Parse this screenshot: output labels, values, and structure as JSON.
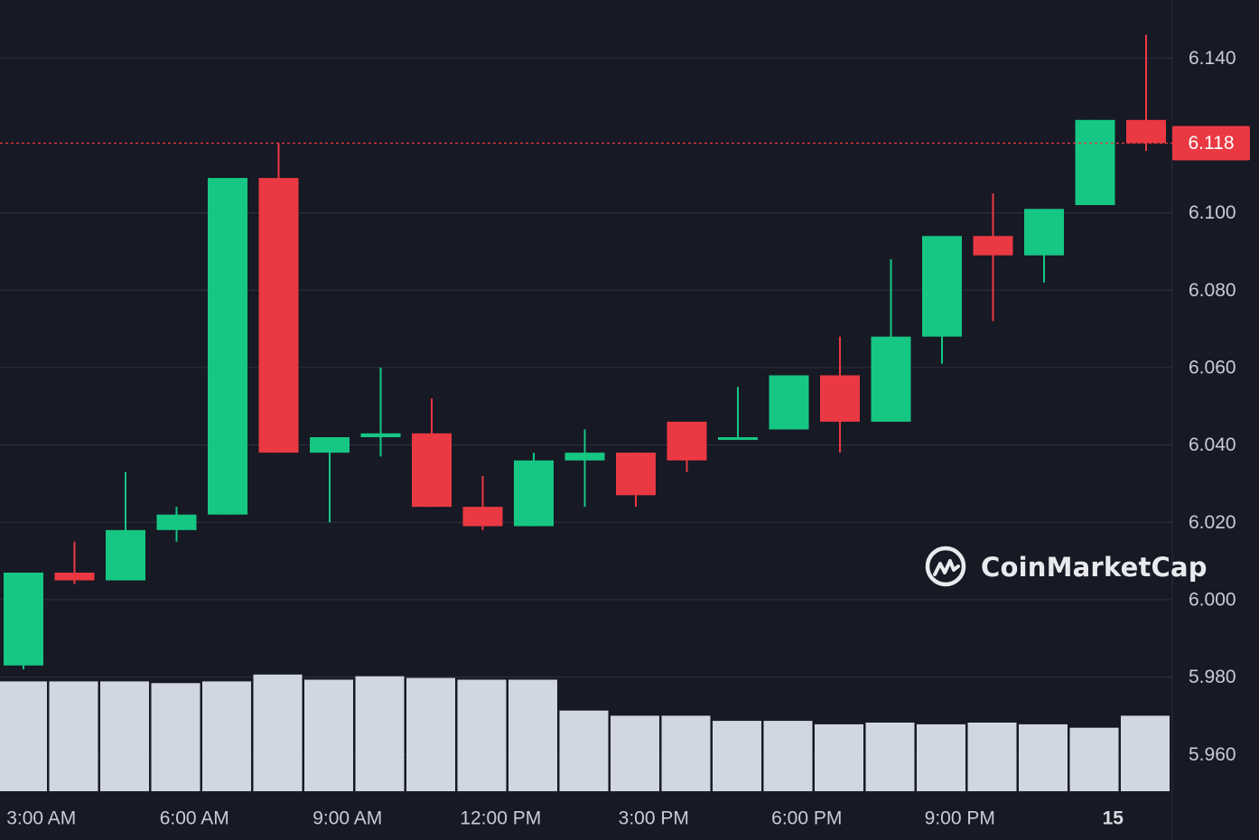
{
  "chart_data": {
    "type": "candlestick",
    "y_axis": {
      "position": "right",
      "ticks": [
        "5.960",
        "5.980",
        "6.000",
        "6.020",
        "6.040",
        "6.060",
        "6.080",
        "6.100",
        "6.140"
      ],
      "tick_values": [
        5.96,
        5.98,
        6.0,
        6.02,
        6.04,
        6.06,
        6.08,
        6.1,
        6.14
      ],
      "range": [
        5.9505,
        6.155
      ]
    },
    "x_axis": {
      "labels": [
        {
          "text": "3:00 AM",
          "bold": false
        },
        {
          "text": "6:00 AM",
          "bold": false
        },
        {
          "text": "9:00 AM",
          "bold": false
        },
        {
          "text": "12:00 PM",
          "bold": false
        },
        {
          "text": "3:00 PM",
          "bold": false
        },
        {
          "text": "6:00 PM",
          "bold": false
        },
        {
          "text": "9:00 PM",
          "bold": false
        },
        {
          "text": "15",
          "bold": true
        }
      ],
      "label_candle_index": [
        0.35,
        3.35,
        6.35,
        9.35,
        12.35,
        15.35,
        18.35,
        21.35
      ]
    },
    "grid": true,
    "current_price": {
      "value": 6.118,
      "label": "6.118"
    },
    "candles": [
      {
        "open": 5.983,
        "high": 6.007,
        "low": 5.982,
        "close": 6.007
      },
      {
        "open": 6.007,
        "high": 6.015,
        "low": 6.004,
        "close": 6.005
      },
      {
        "open": 6.005,
        "high": 6.033,
        "low": 6.005,
        "close": 6.018
      },
      {
        "open": 6.018,
        "high": 6.024,
        "low": 6.015,
        "close": 6.022
      },
      {
        "open": 6.022,
        "high": 6.109,
        "low": 6.022,
        "close": 6.109
      },
      {
        "open": 6.109,
        "high": 6.118,
        "low": 6.038,
        "close": 6.038
      },
      {
        "open": 6.038,
        "high": 6.042,
        "low": 6.02,
        "close": 6.042
      },
      {
        "open": 6.042,
        "high": 6.06,
        "low": 6.037,
        "close": 6.043
      },
      {
        "open": 6.043,
        "high": 6.052,
        "low": 6.024,
        "close": 6.024
      },
      {
        "open": 6.024,
        "high": 6.032,
        "low": 6.018,
        "close": 6.019
      },
      {
        "open": 6.019,
        "high": 6.038,
        "low": 6.019,
        "close": 6.036
      },
      {
        "open": 6.036,
        "high": 6.044,
        "low": 6.024,
        "close": 6.038
      },
      {
        "open": 6.038,
        "high": 6.038,
        "low": 6.024,
        "close": 6.027
      },
      {
        "open": 6.046,
        "high": 6.046,
        "low": 6.033,
        "close": 6.036
      },
      {
        "open": 6.042,
        "high": 6.055,
        "low": 6.042,
        "close": 6.042
      },
      {
        "open": 6.044,
        "high": 6.058,
        "low": 6.044,
        "close": 6.058
      },
      {
        "open": 6.058,
        "high": 6.068,
        "low": 6.038,
        "close": 6.046
      },
      {
        "open": 6.046,
        "high": 6.088,
        "low": 6.046,
        "close": 6.068
      },
      {
        "open": 6.068,
        "high": 6.094,
        "low": 6.061,
        "close": 6.094
      },
      {
        "open": 6.094,
        "high": 6.105,
        "low": 6.072,
        "close": 6.089
      },
      {
        "open": 6.089,
        "high": 6.101,
        "low": 6.082,
        "close": 6.101
      },
      {
        "open": 6.102,
        "high": 6.124,
        "low": 6.102,
        "close": 6.124
      },
      {
        "open": 6.124,
        "high": 6.146,
        "low": 6.116,
        "close": 6.118
      }
    ],
    "volume": [
      0.64,
      0.64,
      0.64,
      0.63,
      0.64,
      0.68,
      0.65,
      0.67,
      0.66,
      0.65,
      0.65,
      0.47,
      0.44,
      0.44,
      0.41,
      0.41,
      0.39,
      0.4,
      0.39,
      0.4,
      0.39,
      0.37,
      0.44
    ],
    "colors": {
      "up": "#16c784",
      "down": "#ea3943",
      "volume": "#d1d6e3",
      "grid": "#2a2d3a",
      "background": "#171924"
    }
  },
  "watermark": {
    "text": "CoinMarketCap",
    "icon": "coinmarketcap-logo-icon"
  }
}
